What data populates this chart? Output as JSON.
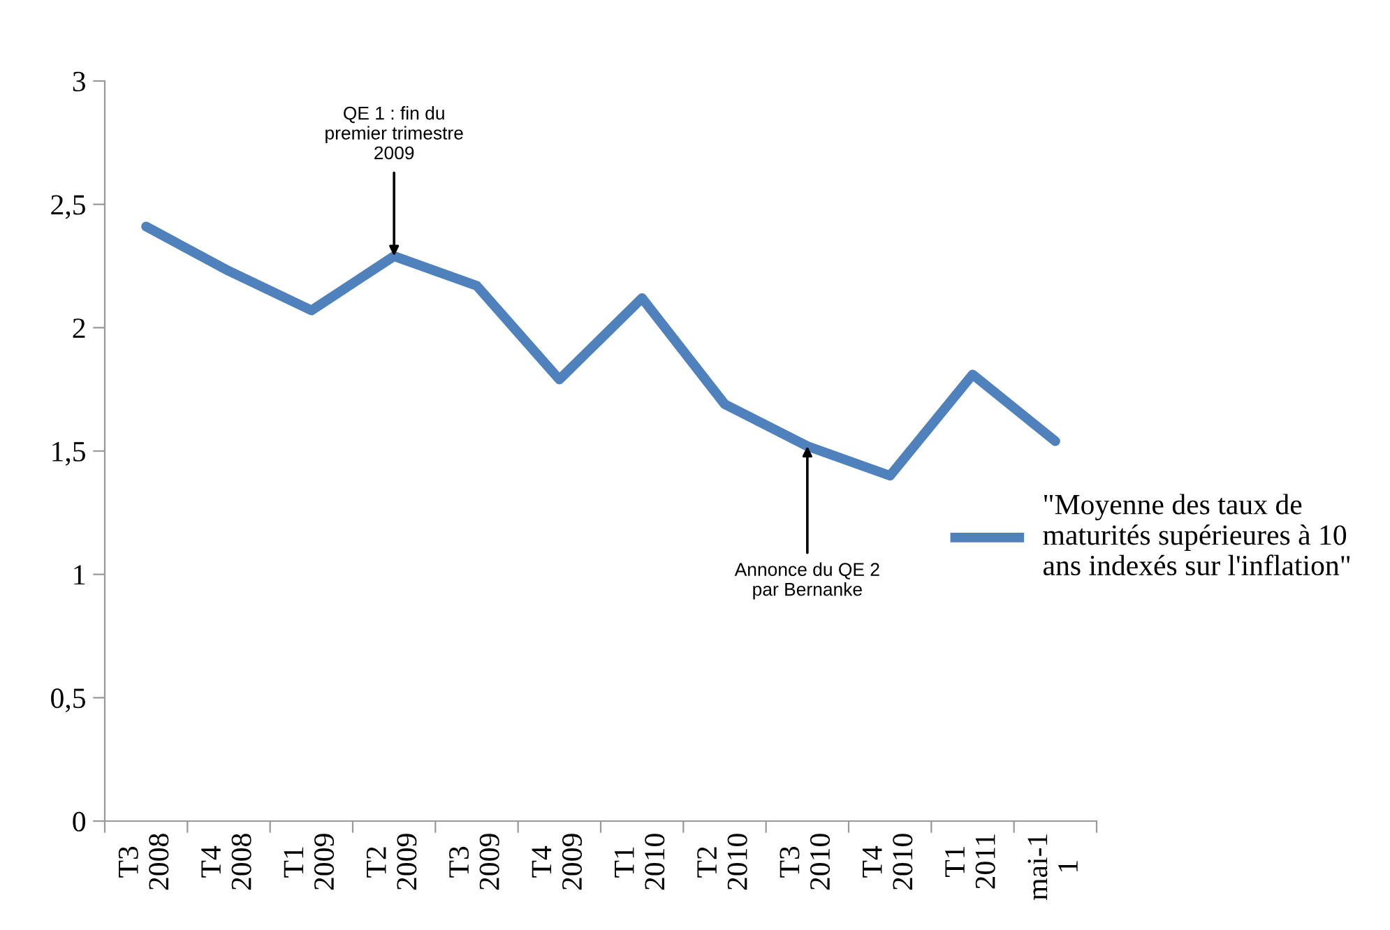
{
  "chart_data": {
    "type": "line",
    "categories": [
      "T3\n2008",
      "T4\n2008",
      "T1\n2009",
      "T2\n2009",
      "T3\n2009",
      "T4\n2009",
      "T1\n2010",
      "T2\n2010",
      "T3\n2010",
      "T4\n2010",
      "T1\n2011",
      "mai-1\n1"
    ],
    "series": [
      {
        "name": "\"Moyenne des taux de\nmaturités supérieures à 10\nans indexés sur l'inflation\"",
        "color": "#4f81bd",
        "values": [
          2.41,
          2.23,
          2.07,
          2.29,
          2.17,
          1.79,
          2.12,
          1.69,
          1.52,
          1.4,
          1.81,
          1.54
        ]
      }
    ],
    "ylim": [
      0,
      3
    ],
    "yticks": [
      {
        "value": 0,
        "label": "0"
      },
      {
        "value": 0.5,
        "label": "0,5"
      },
      {
        "value": 1,
        "label": "1"
      },
      {
        "value": 1.5,
        "label": "1,5"
      },
      {
        "value": 2,
        "label": "2"
      },
      {
        "value": 2.5,
        "label": "2,5"
      },
      {
        "value": 3,
        "label": "3"
      }
    ],
    "grid": false,
    "legend": "right",
    "marker": "none",
    "line_style": "solid",
    "annotations": [
      {
        "text": "QE 1 : fin du\npremier trimestre\n2009",
        "x": "T2\n2009",
        "y": 2.29
      },
      {
        "text": "Annonce du QE 2\npar Bernanke",
        "x": "T3\n2010",
        "y": 1.52
      }
    ]
  }
}
